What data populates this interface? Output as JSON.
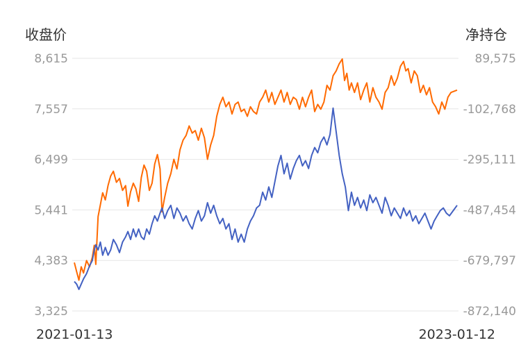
{
  "chart_data": {
    "type": "line",
    "left_axis_title": "收盘价",
    "right_axis_title": "净持仓",
    "left_ticks": [
      "8,615",
      "7,557",
      "6,499",
      "5,441",
      "4,383",
      "3,325"
    ],
    "right_ticks": [
      "89,575",
      "-102,768",
      "-295,111",
      "-487,454",
      "-679,797",
      "-872,140"
    ],
    "left_ylim": [
      3325,
      8615
    ],
    "right_ylim": [
      -872140,
      89575
    ],
    "x_labels": [
      "2021-01-13",
      "2023-01-12"
    ],
    "grid": true,
    "series": [
      {
        "axis": "left",
        "color": "#ff6a00",
        "points": [
          [
            0.0,
            4340
          ],
          [
            0.006,
            4150
          ],
          [
            0.012,
            3970
          ],
          [
            0.018,
            4250
          ],
          [
            0.024,
            4120
          ],
          [
            0.032,
            4380
          ],
          [
            0.04,
            4250
          ],
          [
            0.047,
            4450
          ],
          [
            0.052,
            4700
          ],
          [
            0.056,
            4300
          ],
          [
            0.062,
            5300
          ],
          [
            0.068,
            5550
          ],
          [
            0.074,
            5800
          ],
          [
            0.081,
            5650
          ],
          [
            0.088,
            5950
          ],
          [
            0.095,
            6150
          ],
          [
            0.102,
            6250
          ],
          [
            0.11,
            6020
          ],
          [
            0.118,
            6100
          ],
          [
            0.126,
            5850
          ],
          [
            0.134,
            5950
          ],
          [
            0.14,
            5520
          ],
          [
            0.147,
            5820
          ],
          [
            0.154,
            6000
          ],
          [
            0.161,
            5880
          ],
          [
            0.168,
            5620
          ],
          [
            0.175,
            6120
          ],
          [
            0.182,
            6380
          ],
          [
            0.189,
            6250
          ],
          [
            0.196,
            5850
          ],
          [
            0.203,
            6000
          ],
          [
            0.21,
            6400
          ],
          [
            0.217,
            6600
          ],
          [
            0.224,
            6300
          ],
          [
            0.229,
            5400
          ],
          [
            0.236,
            5700
          ],
          [
            0.244,
            6000
          ],
          [
            0.252,
            6200
          ],
          [
            0.26,
            6500
          ],
          [
            0.268,
            6300
          ],
          [
            0.276,
            6700
          ],
          [
            0.284,
            6900
          ],
          [
            0.292,
            7000
          ],
          [
            0.3,
            7200
          ],
          [
            0.308,
            7050
          ],
          [
            0.316,
            7100
          ],
          [
            0.324,
            6900
          ],
          [
            0.332,
            7150
          ],
          [
            0.34,
            6950
          ],
          [
            0.348,
            6500
          ],
          [
            0.356,
            6800
          ],
          [
            0.364,
            7000
          ],
          [
            0.372,
            7400
          ],
          [
            0.38,
            7650
          ],
          [
            0.388,
            7800
          ],
          [
            0.396,
            7600
          ],
          [
            0.404,
            7700
          ],
          [
            0.412,
            7450
          ],
          [
            0.42,
            7650
          ],
          [
            0.428,
            7700
          ],
          [
            0.436,
            7500
          ],
          [
            0.444,
            7550
          ],
          [
            0.452,
            7400
          ],
          [
            0.46,
            7600
          ],
          [
            0.468,
            7500
          ],
          [
            0.476,
            7450
          ],
          [
            0.484,
            7700
          ],
          [
            0.492,
            7800
          ],
          [
            0.5,
            7950
          ],
          [
            0.508,
            7700
          ],
          [
            0.516,
            7900
          ],
          [
            0.524,
            7650
          ],
          [
            0.532,
            7800
          ],
          [
            0.54,
            7950
          ],
          [
            0.548,
            7700
          ],
          [
            0.556,
            7900
          ],
          [
            0.564,
            7650
          ],
          [
            0.572,
            7800
          ],
          [
            0.58,
            7750
          ],
          [
            0.588,
            7550
          ],
          [
            0.596,
            7800
          ],
          [
            0.604,
            7600
          ],
          [
            0.612,
            7800
          ],
          [
            0.62,
            7950
          ],
          [
            0.628,
            7500
          ],
          [
            0.636,
            7650
          ],
          [
            0.644,
            7550
          ],
          [
            0.652,
            7700
          ],
          [
            0.66,
            8050
          ],
          [
            0.668,
            7950
          ],
          [
            0.676,
            8250
          ],
          [
            0.684,
            8350
          ],
          [
            0.692,
            8500
          ],
          [
            0.7,
            8600
          ],
          [
            0.706,
            8150
          ],
          [
            0.712,
            8300
          ],
          [
            0.718,
            7950
          ],
          [
            0.724,
            8100
          ],
          [
            0.732,
            7900
          ],
          [
            0.74,
            8100
          ],
          [
            0.748,
            7750
          ],
          [
            0.756,
            7950
          ],
          [
            0.764,
            8100
          ],
          [
            0.772,
            7700
          ],
          [
            0.78,
            8000
          ],
          [
            0.788,
            7800
          ],
          [
            0.796,
            7700
          ],
          [
            0.804,
            7550
          ],
          [
            0.812,
            7900
          ],
          [
            0.82,
            8000
          ],
          [
            0.828,
            8250
          ],
          [
            0.836,
            8050
          ],
          [
            0.844,
            8200
          ],
          [
            0.852,
            8450
          ],
          [
            0.86,
            8550
          ],
          [
            0.866,
            8350
          ],
          [
            0.872,
            8400
          ],
          [
            0.88,
            8100
          ],
          [
            0.888,
            8350
          ],
          [
            0.896,
            8250
          ],
          [
            0.904,
            7900
          ],
          [
            0.912,
            8050
          ],
          [
            0.92,
            7850
          ],
          [
            0.928,
            8000
          ],
          [
            0.936,
            7700
          ],
          [
            0.944,
            7600
          ],
          [
            0.952,
            7450
          ],
          [
            0.96,
            7700
          ],
          [
            0.968,
            7550
          ],
          [
            0.976,
            7800
          ],
          [
            0.984,
            7900
          ],
          [
            1.0,
            7950
          ]
        ]
      },
      {
        "axis": "right",
        "color": "#4361c2",
        "points": [
          [
            0.0,
            -760000
          ],
          [
            0.006,
            -770000
          ],
          [
            0.012,
            -790000
          ],
          [
            0.018,
            -770000
          ],
          [
            0.024,
            -750000
          ],
          [
            0.032,
            -730000
          ],
          [
            0.04,
            -700000
          ],
          [
            0.047,
            -680000
          ],
          [
            0.052,
            -640000
          ],
          [
            0.056,
            -620000
          ],
          [
            0.062,
            -640000
          ],
          [
            0.068,
            -610000
          ],
          [
            0.074,
            -660000
          ],
          [
            0.081,
            -630000
          ],
          [
            0.088,
            -660000
          ],
          [
            0.095,
            -640000
          ],
          [
            0.102,
            -600000
          ],
          [
            0.11,
            -620000
          ],
          [
            0.118,
            -650000
          ],
          [
            0.126,
            -610000
          ],
          [
            0.134,
            -590000
          ],
          [
            0.14,
            -570000
          ],
          [
            0.147,
            -600000
          ],
          [
            0.154,
            -560000
          ],
          [
            0.161,
            -590000
          ],
          [
            0.168,
            -560000
          ],
          [
            0.175,
            -590000
          ],
          [
            0.182,
            -600000
          ],
          [
            0.189,
            -560000
          ],
          [
            0.196,
            -580000
          ],
          [
            0.203,
            -540000
          ],
          [
            0.21,
            -510000
          ],
          [
            0.217,
            -530000
          ],
          [
            0.224,
            -500000
          ],
          [
            0.229,
            -480000
          ],
          [
            0.236,
            -520000
          ],
          [
            0.244,
            -490000
          ],
          [
            0.252,
            -470000
          ],
          [
            0.26,
            -520000
          ],
          [
            0.268,
            -480000
          ],
          [
            0.276,
            -500000
          ],
          [
            0.284,
            -530000
          ],
          [
            0.292,
            -510000
          ],
          [
            0.3,
            -540000
          ],
          [
            0.308,
            -560000
          ],
          [
            0.316,
            -520000
          ],
          [
            0.324,
            -490000
          ],
          [
            0.332,
            -530000
          ],
          [
            0.34,
            -510000
          ],
          [
            0.348,
            -460000
          ],
          [
            0.356,
            -500000
          ],
          [
            0.364,
            -470000
          ],
          [
            0.372,
            -510000
          ],
          [
            0.38,
            -540000
          ],
          [
            0.388,
            -520000
          ],
          [
            0.396,
            -560000
          ],
          [
            0.404,
            -540000
          ],
          [
            0.412,
            -600000
          ],
          [
            0.42,
            -560000
          ],
          [
            0.428,
            -610000
          ],
          [
            0.436,
            -580000
          ],
          [
            0.444,
            -610000
          ],
          [
            0.452,
            -560000
          ],
          [
            0.46,
            -530000
          ],
          [
            0.468,
            -510000
          ],
          [
            0.476,
            -480000
          ],
          [
            0.484,
            -470000
          ],
          [
            0.492,
            -420000
          ],
          [
            0.5,
            -450000
          ],
          [
            0.508,
            -400000
          ],
          [
            0.516,
            -440000
          ],
          [
            0.524,
            -380000
          ],
          [
            0.532,
            -320000
          ],
          [
            0.54,
            -280000
          ],
          [
            0.548,
            -350000
          ],
          [
            0.556,
            -310000
          ],
          [
            0.564,
            -370000
          ],
          [
            0.572,
            -330000
          ],
          [
            0.58,
            -300000
          ],
          [
            0.588,
            -280000
          ],
          [
            0.596,
            -320000
          ],
          [
            0.604,
            -300000
          ],
          [
            0.612,
            -330000
          ],
          [
            0.62,
            -280000
          ],
          [
            0.628,
            -250000
          ],
          [
            0.636,
            -270000
          ],
          [
            0.644,
            -230000
          ],
          [
            0.652,
            -210000
          ],
          [
            0.66,
            -240000
          ],
          [
            0.668,
            -200000
          ],
          [
            0.676,
            -100000
          ],
          [
            0.684,
            -190000
          ],
          [
            0.692,
            -280000
          ],
          [
            0.7,
            -350000
          ],
          [
            0.708,
            -400000
          ],
          [
            0.716,
            -490000
          ],
          [
            0.724,
            -420000
          ],
          [
            0.732,
            -470000
          ],
          [
            0.74,
            -440000
          ],
          [
            0.748,
            -480000
          ],
          [
            0.756,
            -450000
          ],
          [
            0.764,
            -490000
          ],
          [
            0.772,
            -430000
          ],
          [
            0.78,
            -460000
          ],
          [
            0.788,
            -440000
          ],
          [
            0.796,
            -470000
          ],
          [
            0.804,
            -500000
          ],
          [
            0.812,
            -440000
          ],
          [
            0.82,
            -470000
          ],
          [
            0.828,
            -510000
          ],
          [
            0.836,
            -480000
          ],
          [
            0.844,
            -500000
          ],
          [
            0.852,
            -520000
          ],
          [
            0.86,
            -480000
          ],
          [
            0.868,
            -510000
          ],
          [
            0.876,
            -490000
          ],
          [
            0.884,
            -530000
          ],
          [
            0.892,
            -510000
          ],
          [
            0.9,
            -540000
          ],
          [
            0.908,
            -520000
          ],
          [
            0.916,
            -500000
          ],
          [
            0.924,
            -530000
          ],
          [
            0.932,
            -560000
          ],
          [
            0.94,
            -530000
          ],
          [
            0.948,
            -510000
          ],
          [
            0.956,
            -490000
          ],
          [
            0.964,
            -480000
          ],
          [
            0.972,
            -500000
          ],
          [
            0.98,
            -510000
          ],
          [
            0.99,
            -490000
          ],
          [
            1.0,
            -470000
          ]
        ]
      }
    ]
  }
}
